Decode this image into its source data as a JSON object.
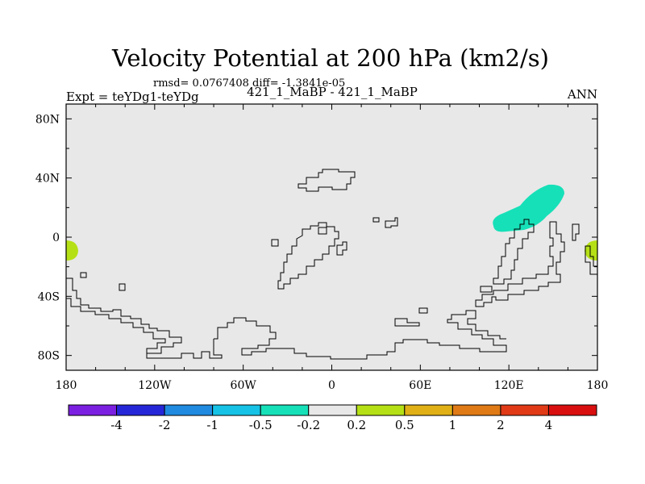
{
  "chart_data": {
    "type": "heatmap",
    "title": "Velocity Potential at 200 hPa (km2/s)",
    "stats_line": "rmsd= 0.0767408 diff= -1.3841e-05",
    "experiment_label": "Expt = teYDg1-teYDg",
    "case_label": "421_1_MaBP - 421_1_MaBP",
    "season_label": "ANN",
    "x_axis": {
      "range": [
        -180,
        180
      ],
      "ticks": [
        -180,
        -120,
        -60,
        0,
        60,
        120,
        180
      ],
      "tick_labels": [
        "180",
        "120W",
        "60W",
        "0",
        "60E",
        "120E",
        "180"
      ]
    },
    "y_axis": {
      "range": [
        -90,
        90
      ],
      "ticks": [
        80,
        40,
        0,
        -40,
        -80
      ],
      "tick_labels": [
        "80N",
        "40N",
        "0",
        "40S",
        "80S"
      ]
    },
    "colorbar": {
      "colors": [
        "#7b1fe0",
        "#2626d9",
        "#1f8ae0",
        "#16c3e6",
        "#16e0b8",
        "#e8e8e8",
        "#b5e016",
        "#e0b016",
        "#e07a16",
        "#e03a16",
        "#d90f0f"
      ],
      "labels": [
        "-4",
        "-2",
        "-1",
        "-0.5",
        "-0.2",
        "0.2",
        "0.5",
        "1",
        "2",
        "4"
      ]
    },
    "background_value_range": "-0.2 to 0.2",
    "regions": [
      {
        "name": "positive-anomaly-west-edge",
        "level": "0.2 to 0.5",
        "lon_range": [
          -180,
          -175
        ],
        "lat_range": [
          -16,
          -2
        ]
      },
      {
        "name": "positive-anomaly-east-edge",
        "level": "0.2 to 0.5",
        "lon_range": [
          174,
          180
        ],
        "lat_range": [
          -16,
          -2
        ]
      },
      {
        "name": "negative-anomaly-west-pacific",
        "level": "-0.5 to -0.2",
        "lon_range": [
          110,
          160
        ],
        "lat_range": [
          4,
          36
        ]
      }
    ]
  }
}
